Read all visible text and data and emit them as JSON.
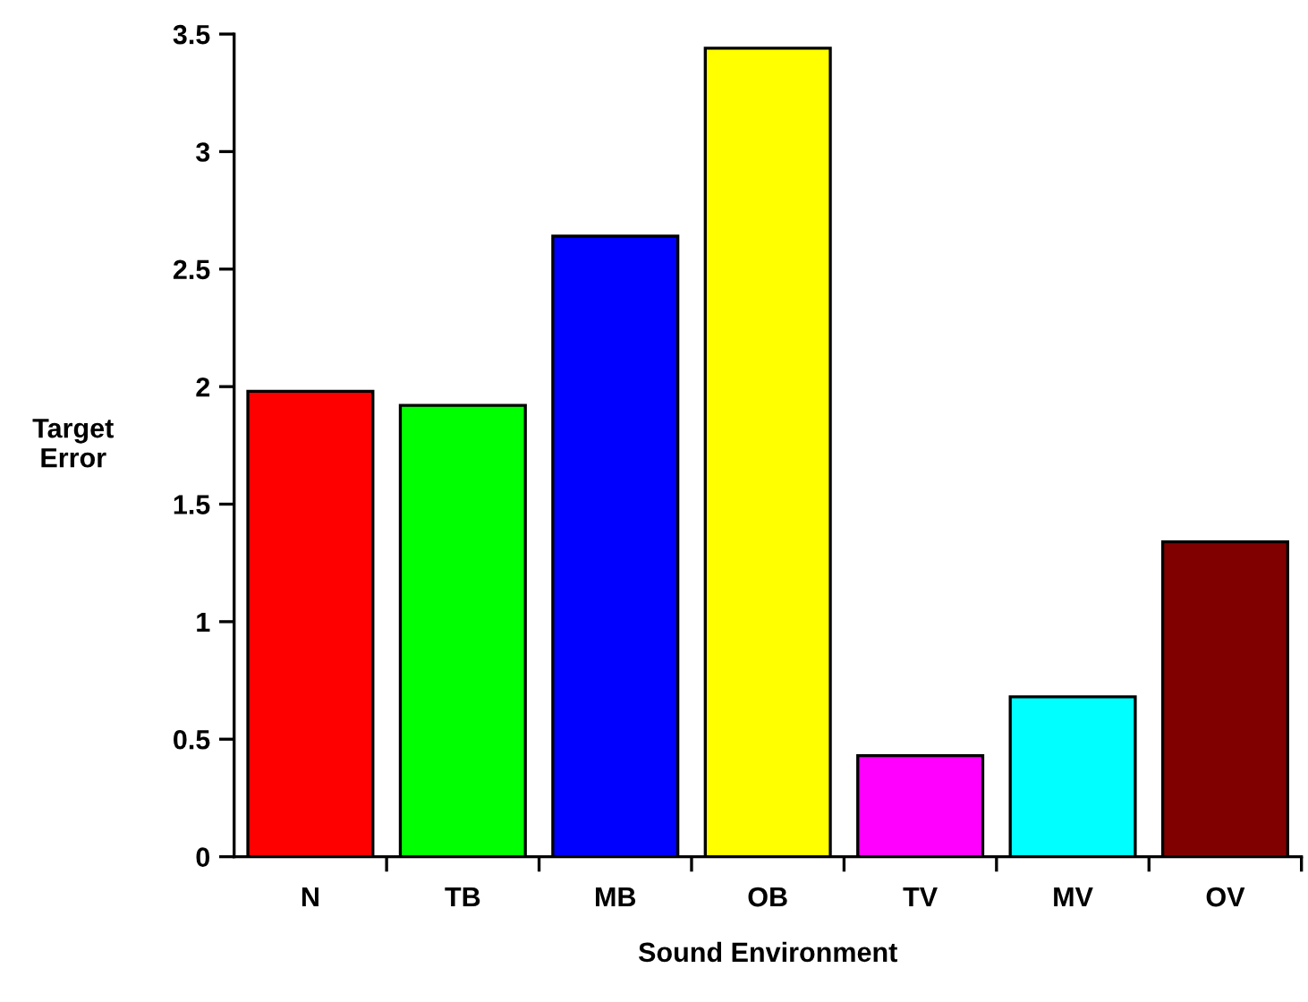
{
  "chart_data": {
    "type": "bar",
    "xlabel": "Sound Environment",
    "ylabel": "Target\nError",
    "categories": [
      "N",
      "TB",
      "MB",
      "OB",
      "TV",
      "MV",
      "OV"
    ],
    "values": [
      1.98,
      1.92,
      2.64,
      3.44,
      0.43,
      0.68,
      1.34
    ],
    "colors": [
      "#ff0000",
      "#00ff00",
      "#0000ff",
      "#ffff00",
      "#ff00ff",
      "#00ffff",
      "#800000"
    ],
    "ylim": [
      0,
      3.5
    ],
    "yticks": [
      0,
      0.5,
      1,
      1.5,
      2,
      2.5,
      3,
      3.5
    ],
    "grid": false,
    "legend": false
  }
}
